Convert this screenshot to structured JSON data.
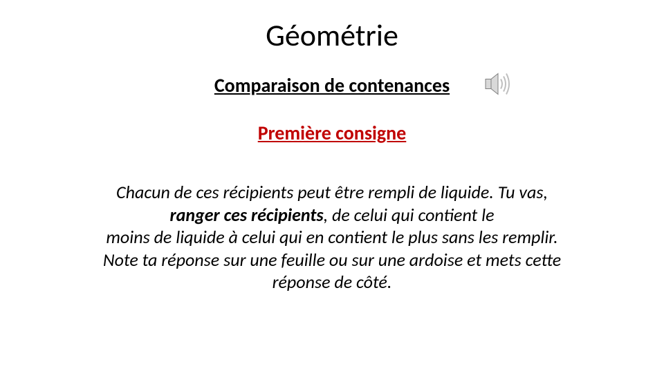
{
  "title": "Géométrie",
  "subtitle": "Comparaison de contenances",
  "consigne": "Première consigne",
  "body_lines": [
    "Chacun de ces récipients peut être rempli de liquide. Tu vas,",
    "__BOLD__ranger ces récipients__/BOLD__, de celui qui contient le",
    "moins de liquide à celui qui en contient le plus sans les remplir.",
    "Note ta réponse sur une feuille ou sur une ardoise et mets cette",
    "réponse de côté."
  ],
  "colors": {
    "title": "#000000",
    "subtitle": "#000000",
    "consigne": "#c00000",
    "body": "#000000",
    "background": "#ffffff",
    "speaker_fill": "#d9d9d9",
    "speaker_stroke": "#7f7f7f",
    "speaker_wave": "#bfbfbf"
  },
  "fonts": {
    "title_size": 44,
    "subtitle_size": 28,
    "consigne_size": 28,
    "body_size": 26
  },
  "icon": {
    "name": "speaker-icon",
    "width": 40,
    "height": 40
  }
}
